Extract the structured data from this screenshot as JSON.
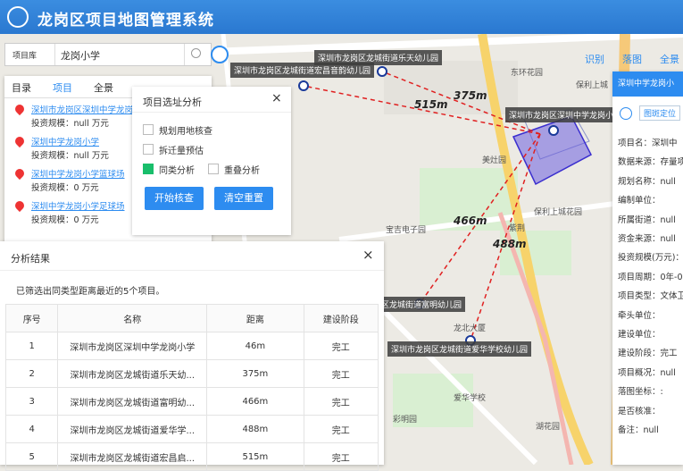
{
  "header": {
    "title": "龙岗区项目地图管理系统"
  },
  "search": {
    "scope": "项目库",
    "query": "龙岗小学"
  },
  "tabs": [
    "目录",
    "项目",
    "全景"
  ],
  "results_list": [
    {
      "name": "深圳市龙岗区深圳中学龙岗小学",
      "invest": "投资规模：null 万元"
    },
    {
      "name": "深圳中学龙岗小学",
      "invest": "投资规模：null 万元"
    },
    {
      "name": "深圳中学龙岗小学篮球场",
      "invest": "投资规模：0 万元"
    },
    {
      "name": "深圳中学龙岗小学足球场",
      "invest": "投资规模：0 万元"
    }
  ],
  "dialog": {
    "title": "项目选址分析",
    "options": [
      {
        "label": "规划用地核查",
        "checked": false
      },
      {
        "label": "拆迁量预估",
        "checked": false
      },
      {
        "label": "同类分析",
        "checked": true
      },
      {
        "label": "重叠分析",
        "checked": false
      }
    ],
    "buttons": [
      "开始核查",
      "清空重置"
    ]
  },
  "analysis": {
    "title": "分析结果",
    "summary": "已筛选出同类型距离最近的5个项目。",
    "columns": [
      "序号",
      "名称",
      "距离",
      "建设阶段"
    ],
    "rows": [
      [
        "1",
        "深圳市龙岗区深圳中学龙岗小学",
        "46m",
        "完工"
      ],
      [
        "2",
        "深圳市龙岗区龙城街道乐天幼...",
        "375m",
        "完工"
      ],
      [
        "3",
        "深圳市龙岗区龙城街道富明幼...",
        "466m",
        "完工"
      ],
      [
        "4",
        "深圳市龙岗区龙城街道爱华学...",
        "488m",
        "完工"
      ],
      [
        "5",
        "深圳市龙岗区龙城街道宏昌启...",
        "515m",
        "完工"
      ]
    ]
  },
  "toolbar": [
    "识别",
    "落图",
    "全景"
  ],
  "map": {
    "markers": [
      "深圳市龙岗区龙城街道乐天幼儿园",
      "深圳市龙岗区龙城街道宏昌音韵幼儿园",
      "深圳市龙岗区深圳中学龙岗小学",
      "深圳市龙岗区龙城街道富明幼儿园",
      "深圳市龙岗区龙城街道爱华学校幼儿园"
    ],
    "distances": [
      "375m",
      "515m",
      "466m",
      "488m"
    ],
    "places": [
      "东环花园",
      "保利上城",
      "美灶园",
      "保利上城花园",
      "宝吉电子园",
      "紫荆",
      "龙北大厦",
      "爱华学校",
      "彩明园",
      "湖花园"
    ]
  },
  "detail": {
    "title": "深圳中学龙岗小",
    "locate": "图斑定位",
    "fields": [
      "项目名：深圳中",
      "数据来源：存量项",
      "规划名称：null",
      "编制单位：",
      "所属街道：null",
      "资金来源：null",
      "投资规模(万元)：",
      "项目周期：0年-0",
      "项目类型：文体卫",
      "牵头单位：",
      "建设单位：",
      "建设阶段：完工",
      "项目概况：null",
      "落图坐标：:",
      "是否核准：",
      "备注：null"
    ]
  }
}
